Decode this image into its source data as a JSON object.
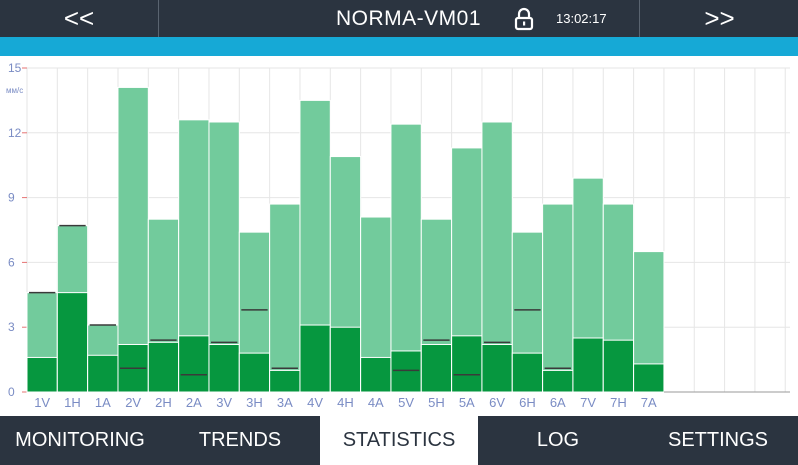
{
  "header": {
    "prev_label": "<<",
    "next_label": ">>",
    "device_name": "NORMA-VM01",
    "time": "13:02:17"
  },
  "tabs": [
    {
      "label": "MONITORING",
      "active": false
    },
    {
      "label": "TRENDS",
      "active": false
    },
    {
      "label": "STATISTICS",
      "active": true
    },
    {
      "label": "LOG",
      "active": false
    },
    {
      "label": "SETTINGS",
      "active": false
    }
  ],
  "colors": {
    "header_bg": "#2b3440",
    "accent": "#16a9d6",
    "bar_light": "#72cb9c",
    "bar_dark": "#06973f",
    "grid": "#e6e6e6",
    "axis_text": "#7a8cc4",
    "mark": "#3a3a3a"
  },
  "chart_data": {
    "type": "bar",
    "ylabel": "мм/с",
    "ylim": [
      0,
      15
    ],
    "yticks": [
      0,
      3,
      6,
      9,
      12,
      15
    ],
    "categories": [
      "1V",
      "1H",
      "1A",
      "2V",
      "2H",
      "2A",
      "3V",
      "3H",
      "3A",
      "4V",
      "4H",
      "4A",
      "5V",
      "5H",
      "5A",
      "6V",
      "6H",
      "6A",
      "7V",
      "7H",
      "7A"
    ],
    "series": [
      {
        "role": "max",
        "values": [
          4.6,
          7.7,
          3.1,
          14.1,
          8.0,
          12.6,
          12.5,
          7.4,
          8.7,
          13.5,
          10.9,
          8.1,
          12.4,
          8.0,
          11.3,
          12.5,
          7.4,
          8.7,
          9.9,
          8.7,
          6.5
        ]
      },
      {
        "role": "min",
        "values": [
          1.6,
          4.6,
          1.7,
          2.2,
          2.3,
          2.6,
          2.2,
          1.8,
          1.0,
          3.1,
          3.0,
          1.6,
          1.9,
          2.2,
          2.6,
          2.2,
          1.8,
          1.0,
          2.5,
          2.4,
          1.3
        ]
      }
    ],
    "markers": [
      4.6,
      7.7,
      3.1,
      1.1,
      2.4,
      0.8,
      2.3,
      3.8,
      1.1,
      null,
      null,
      null,
      1.0,
      2.4,
      0.8,
      2.3,
      3.8,
      1.1,
      null,
      null,
      null
    ]
  }
}
